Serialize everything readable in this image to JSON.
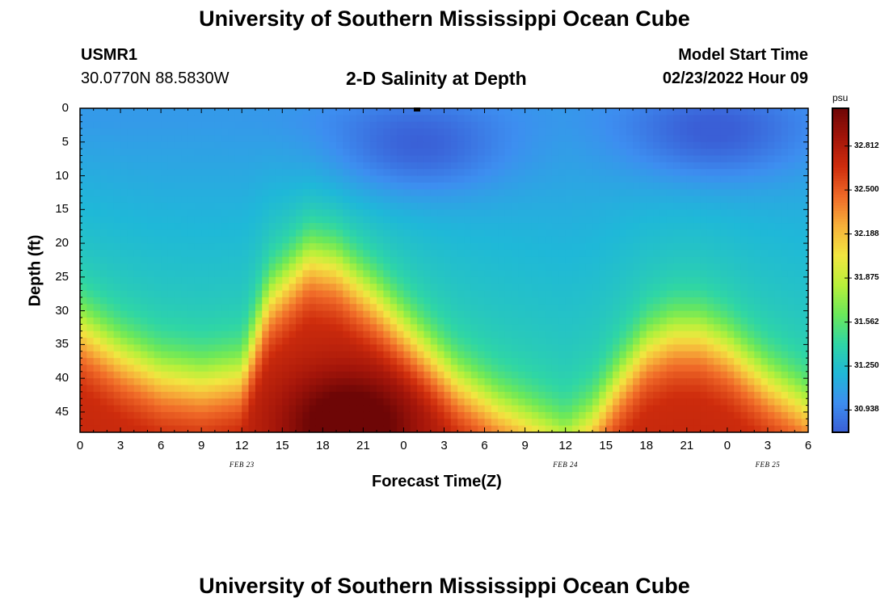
{
  "title_top": "University of Southern Mississippi Ocean Cube",
  "title_bottom": "University of Southern Mississippi Ocean Cube",
  "station": {
    "name": "USMR1",
    "coords": "30.0770N  88.5830W"
  },
  "model_start": {
    "label": "Model Start Time",
    "value": "02/23/2022 Hour 09"
  },
  "chart_data": {
    "type": "heatmap",
    "title": "2-D Salinity at Depth",
    "xlabel": "Forecast Time(Z)",
    "ylabel": "Depth (ft)",
    "x_hours_range": [
      0,
      54
    ],
    "x_tick_labels": [
      "0",
      "3",
      "6",
      "9",
      "12",
      "15",
      "18",
      "21",
      "0",
      "3",
      "6",
      "9",
      "12",
      "15",
      "18",
      "21",
      "0",
      "3",
      "6"
    ],
    "date_labels": [
      {
        "text": "FEB 23",
        "hour": 12
      },
      {
        "text": "FEB 24",
        "hour": 36
      },
      {
        "text": "FEB 25",
        "hour": 51
      }
    ],
    "ylim": [
      0,
      48
    ],
    "y_tick_labels": [
      "0",
      "5",
      "10",
      "15",
      "20",
      "25",
      "30",
      "35",
      "40",
      "45"
    ],
    "colorbar": {
      "unit": "psu",
      "range": [
        30.78,
        33.08
      ],
      "tick_labels": [
        "32.812",
        "32.500",
        "32.188",
        "31.875",
        "31.562",
        "31.250",
        "30.938"
      ],
      "colors": [
        "#3a5fd6",
        "#3d8ef0",
        "#1fb8d8",
        "#2fd6a5",
        "#6be85a",
        "#b8f03a",
        "#f2e640",
        "#f7b13a",
        "#f06a28",
        "#cf2d0d",
        "#a3150a",
        "#6e0606"
      ]
    },
    "pycnocline_depth_ft": [
      {
        "hour": 0,
        "depth": 32
      },
      {
        "hour": 3,
        "depth": 36
      },
      {
        "hour": 6,
        "depth": 39
      },
      {
        "hour": 9,
        "depth": 40
      },
      {
        "hour": 12,
        "depth": 39
      },
      {
        "hour": 14,
        "depth": 28
      },
      {
        "hour": 17,
        "depth": 22
      },
      {
        "hour": 19,
        "depth": 23
      },
      {
        "hour": 22,
        "depth": 28
      },
      {
        "hour": 25,
        "depth": 34
      },
      {
        "hour": 28,
        "depth": 40
      },
      {
        "hour": 31,
        "depth": 44
      },
      {
        "hour": 34,
        "depth": 47
      },
      {
        "hour": 36,
        "depth": 49
      },
      {
        "hour": 38,
        "depth": 46
      },
      {
        "hour": 40,
        "depth": 40
      },
      {
        "hour": 42,
        "depth": 35
      },
      {
        "hour": 44,
        "depth": 33
      },
      {
        "hour": 46,
        "depth": 33
      },
      {
        "hour": 48,
        "depth": 35
      },
      {
        "hour": 51,
        "depth": 40
      },
      {
        "hour": 54,
        "depth": 44
      }
    ],
    "surface_low_salinity_cores": [
      {
        "hour": 25,
        "depth": 6,
        "salinity": 30.82
      },
      {
        "hour": 47,
        "depth": 4,
        "salinity": 30.85
      }
    ],
    "deep_max": {
      "hour": 20,
      "depth": 47,
      "salinity": 33.0
    }
  }
}
